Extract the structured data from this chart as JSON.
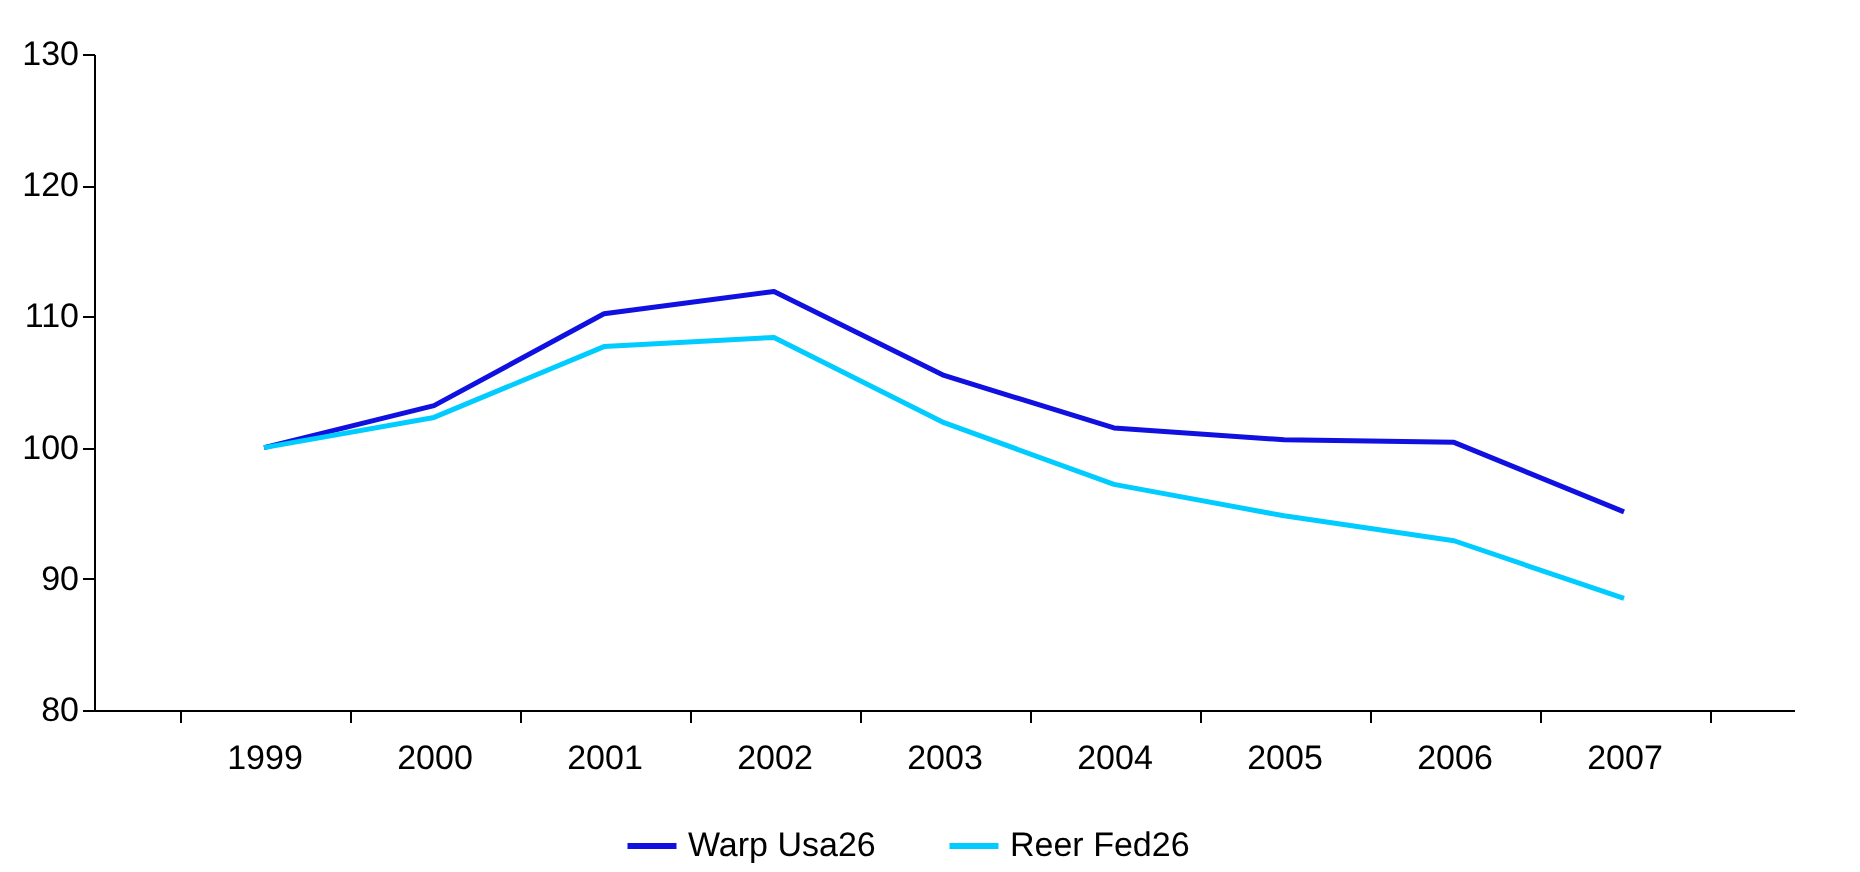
{
  "chart_data": {
    "type": "line",
    "categories": [
      "1999",
      "2000",
      "2001",
      "2002",
      "2003",
      "2004",
      "2005",
      "2006",
      "2007"
    ],
    "series": [
      {
        "name": "Warp Usa26",
        "color": "#1010e0",
        "values": [
          100,
          103.2,
          110.2,
          111.9,
          105.5,
          101.5,
          100.6,
          100.4,
          95.1
        ]
      },
      {
        "name": "Reer Fed26",
        "color": "#00ccff",
        "values": [
          100,
          102.3,
          107.7,
          108.4,
          101.9,
          97.2,
          94.8,
          92.9,
          88.5
        ]
      }
    ],
    "ylim": [
      80,
      130
    ],
    "yticks": [
      80,
      90,
      100,
      110,
      120,
      130
    ],
    "grid": false,
    "legend": "bottom",
    "marker": "none",
    "line_style": "solid"
  }
}
